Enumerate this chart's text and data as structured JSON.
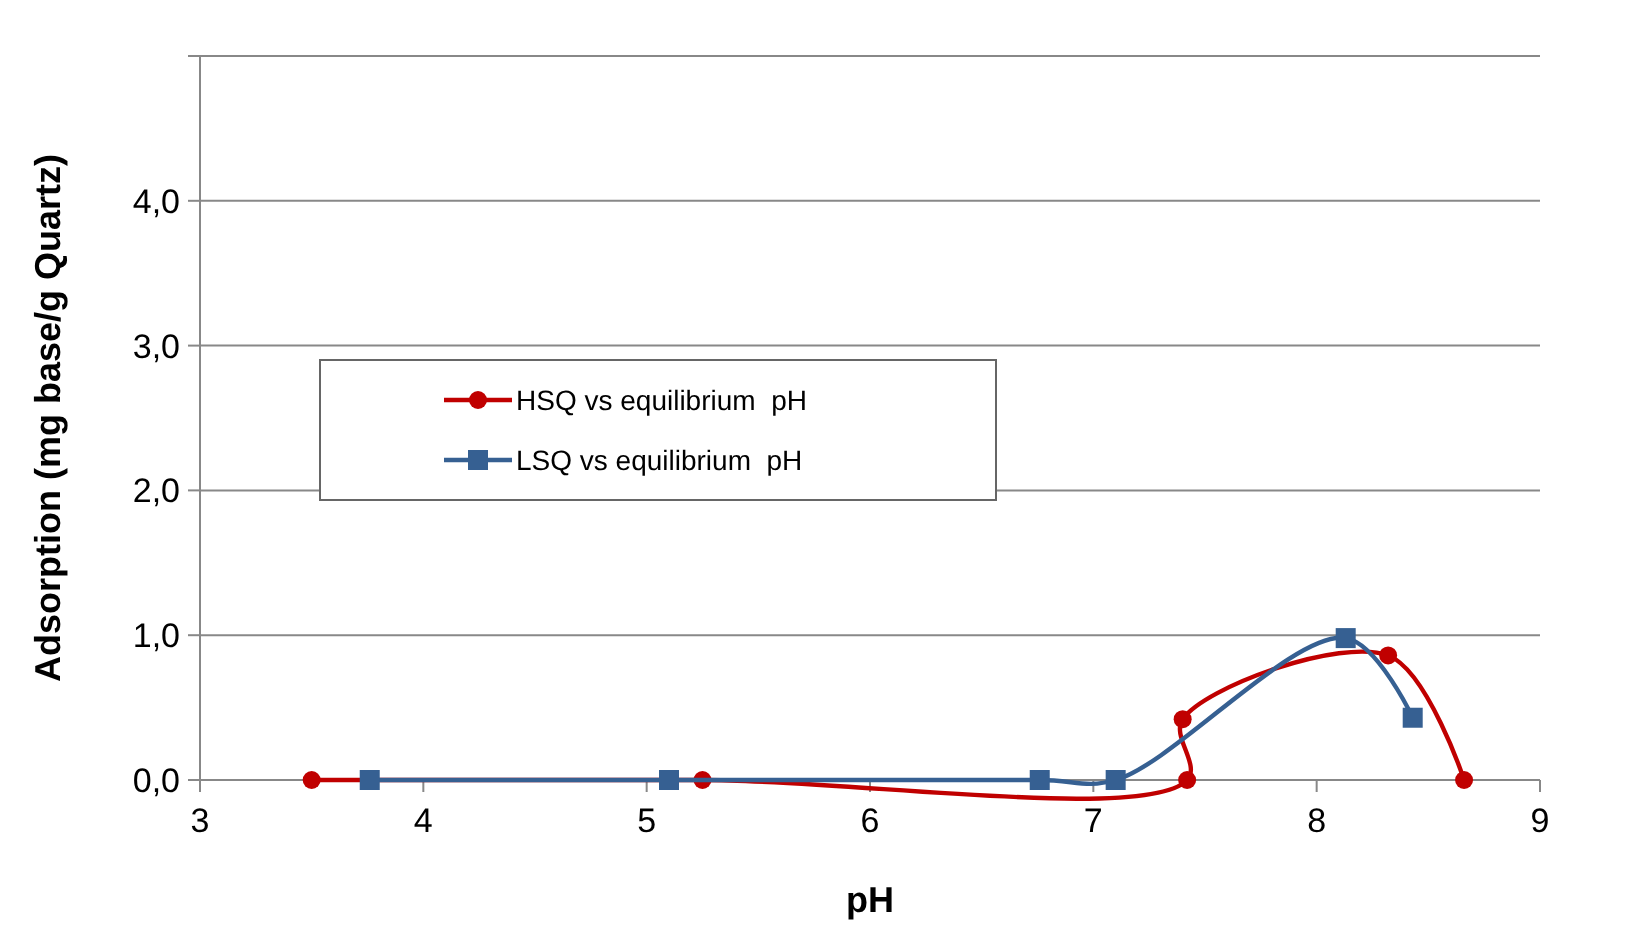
{
  "chart_data": {
    "type": "line",
    "xlabel": "pH",
    "ylabel": "Adsorption (mg base/g Quartz)",
    "xlim": [
      3,
      9
    ],
    "xticks": [
      3,
      4,
      5,
      6,
      7,
      8,
      9
    ],
    "ylim": [
      0,
      5
    ],
    "yticks": [
      {
        "value": 0,
        "label": "0,0"
      },
      {
        "value": 1,
        "label": "1,0"
      },
      {
        "value": 2,
        "label": "2,0"
      },
      {
        "value": 3,
        "label": "3,0"
      },
      {
        "value": 4,
        "label": "4,0"
      },
      {
        "value": 5,
        "label": null
      }
    ],
    "grid": "y",
    "legend": "left",
    "line_style": "solid",
    "series": [
      {
        "name": "HSQ vs equilibrium  pH",
        "color": "#c00000",
        "marker": "circle",
        "x": [
          3.5,
          5.25,
          7.42,
          7.4,
          8.32,
          8.66
        ],
        "values": [
          0,
          0,
          0,
          0.42,
          0.86,
          0
        ]
      },
      {
        "name": "LSQ vs equilibrium  pH",
        "color": "#366092",
        "marker": "square",
        "x": [
          3.76,
          5.1,
          6.76,
          7.1,
          8.13,
          8.43
        ],
        "values": [
          0,
          0,
          0,
          0,
          0.98,
          0.43
        ]
      }
    ]
  }
}
